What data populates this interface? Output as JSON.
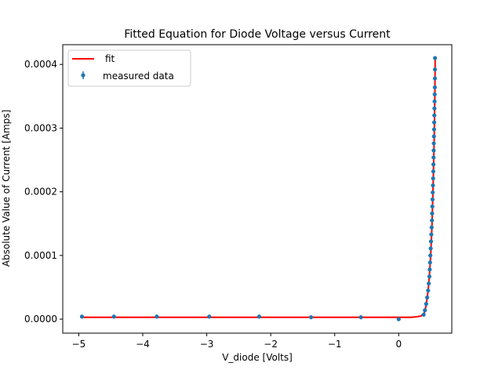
{
  "chart_data": {
    "type": "scatter",
    "title": "Fitted Equation for Diode Voltage versus Current",
    "xlabel": "V_diode [Volts]",
    "ylabel": "Absolute Value of Current [Amps]",
    "xlim": [
      -5.25,
      0.83
    ],
    "ylim": [
      -2.2e-05,
      0.000431
    ],
    "xticks": [
      -5,
      -4,
      -3,
      -2,
      -1,
      0
    ],
    "xtick_labels": [
      "−5",
      "−4",
      "−3",
      "−2",
      "−1",
      "0"
    ],
    "yticks": [
      0,
      0.0001,
      0.0002,
      0.0003,
      0.0004
    ],
    "ytick_labels": [
      "0.0000",
      "0.0001",
      "0.0002",
      "0.0003",
      "0.0004"
    ],
    "grid": false,
    "legend": {
      "position": "upper-left",
      "entries": [
        "fit",
        "measured data"
      ]
    },
    "colors": {
      "fit": "#ff0000",
      "data": "#1f77b4"
    },
    "series": [
      {
        "name": "measured data",
        "kind": "errorbar-points",
        "x": [
          -4.95,
          -4.45,
          -3.78,
          -2.96,
          -2.18,
          -1.37,
          -0.59,
          0.0,
          0.39,
          0.41,
          0.43,
          0.445,
          0.46,
          0.47,
          0.48,
          0.485,
          0.49,
          0.495,
          0.5,
          0.505,
          0.51,
          0.515,
          0.52,
          0.523,
          0.526,
          0.529,
          0.532,
          0.535,
          0.538,
          0.541,
          0.543,
          0.545,
          0.547,
          0.549,
          0.551,
          0.553,
          0.555,
          0.557,
          0.559,
          0.561,
          0.563,
          0.565,
          0.566,
          0.567,
          0.568
        ],
        "y": [
          4e-06,
          4e-06,
          4e-06,
          4e-06,
          4e-06,
          3e-06,
          3e-06,
          0.0,
          7e-06,
          1.4e-05,
          2.4e-05,
          3.4e-05,
          4.5e-05,
          5.6e-05,
          6.7e-05,
          7.8e-05,
          8.9e-05,
          0.0001,
          0.000111,
          0.000122,
          0.000133,
          0.000144,
          0.000155,
          0.000166,
          0.000177,
          0.000188,
          0.000199,
          0.00021,
          0.000221,
          0.000232,
          0.000243,
          0.000254,
          0.000265,
          0.000276,
          0.000287,
          0.000298,
          0.000309,
          0.00032,
          0.000331,
          0.000342,
          0.000353,
          0.000364,
          0.000378,
          0.000392,
          0.00041
        ]
      },
      {
        "name": "fit",
        "kind": "line",
        "x": [
          -4.95,
          -3.0,
          -1.0,
          0.0,
          0.2,
          0.3,
          0.35,
          0.4,
          0.43,
          0.46,
          0.48,
          0.5,
          0.52,
          0.54,
          0.555,
          0.565,
          0.57
        ],
        "y": [
          3e-06,
          3e-06,
          3e-06,
          3e-06,
          3e-06,
          4e-06,
          5e-06,
          1e-05,
          2.2e-05,
          4.5e-05,
          6.8e-05,
          0.0001,
          0.000145,
          0.000215,
          0.000285,
          0.00035,
          0.000408
        ]
      }
    ]
  }
}
